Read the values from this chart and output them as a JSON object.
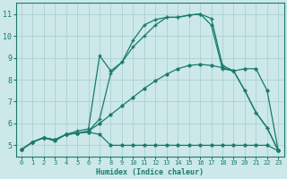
{
  "title": "",
  "xlabel": "Humidex (Indice chaleur)",
  "bg_color": "#cce8e8",
  "line_color": "#1a7a6e",
  "xlim": [
    -0.5,
    23.5
  ],
  "ylim": [
    4.5,
    11.5
  ],
  "xticks": [
    0,
    1,
    2,
    3,
    4,
    5,
    6,
    7,
    8,
    9,
    10,
    11,
    12,
    13,
    14,
    15,
    16,
    17,
    18,
    19,
    20,
    21,
    22,
    23
  ],
  "yticks": [
    5,
    6,
    7,
    8,
    9,
    10,
    11
  ],
  "lines": [
    {
      "x": [
        0,
        1,
        2,
        3,
        4,
        5,
        6,
        7,
        8,
        9,
        10,
        11,
        12,
        13,
        14,
        15,
        16,
        17,
        18,
        19,
        20,
        21,
        22,
        23
      ],
      "y": [
        4.8,
        5.15,
        5.35,
        5.2,
        5.5,
        5.55,
        5.6,
        5.5,
        5.0,
        5.0,
        5.0,
        5.0,
        5.0,
        5.0,
        5.0,
        5.0,
        5.0,
        5.0,
        5.0,
        5.0,
        5.0,
        5.0,
        5.0,
        4.75
      ],
      "marker": "o",
      "markersize": 2.0,
      "linewidth": 0.9
    },
    {
      "x": [
        0,
        1,
        2,
        3,
        4,
        5,
        6,
        7,
        8,
        9,
        10,
        11,
        12,
        13,
        14,
        15,
        16,
        17,
        18,
        19,
        20,
        21,
        22,
        23
      ],
      "y": [
        4.8,
        5.15,
        5.35,
        5.25,
        5.5,
        5.55,
        5.65,
        6.0,
        6.4,
        6.8,
        7.2,
        7.6,
        7.95,
        8.25,
        8.5,
        8.65,
        8.7,
        8.65,
        8.55,
        8.4,
        8.5,
        8.5,
        7.5,
        4.75
      ],
      "marker": "o",
      "markersize": 2.0,
      "linewidth": 0.9
    },
    {
      "x": [
        0,
        1,
        2,
        3,
        4,
        5,
        6,
        7,
        8,
        9,
        10,
        11,
        12,
        13,
        14,
        15,
        16,
        17,
        18,
        19,
        20,
        21,
        22,
        23
      ],
      "y": [
        4.8,
        5.15,
        5.35,
        5.25,
        5.5,
        5.55,
        5.65,
        6.2,
        8.3,
        8.8,
        9.8,
        10.5,
        10.75,
        10.85,
        10.85,
        10.95,
        11.0,
        10.8,
        8.65,
        8.4,
        7.5,
        6.5,
        5.8,
        4.75
      ],
      "marker": "+",
      "markersize": 3.5,
      "linewidth": 0.9
    },
    {
      "x": [
        0,
        1,
        2,
        3,
        4,
        5,
        6,
        7,
        8,
        9,
        10,
        11,
        12,
        13,
        14,
        15,
        16,
        17,
        18,
        19,
        20,
        21,
        22,
        23
      ],
      "y": [
        4.8,
        5.15,
        5.35,
        5.25,
        5.5,
        5.65,
        5.75,
        9.1,
        8.4,
        8.8,
        9.5,
        10.0,
        10.5,
        10.85,
        10.85,
        10.95,
        11.0,
        10.5,
        8.5,
        8.4,
        7.5,
        6.5,
        5.8,
        4.75
      ],
      "marker": "+",
      "markersize": 3.5,
      "linewidth": 0.9
    }
  ]
}
